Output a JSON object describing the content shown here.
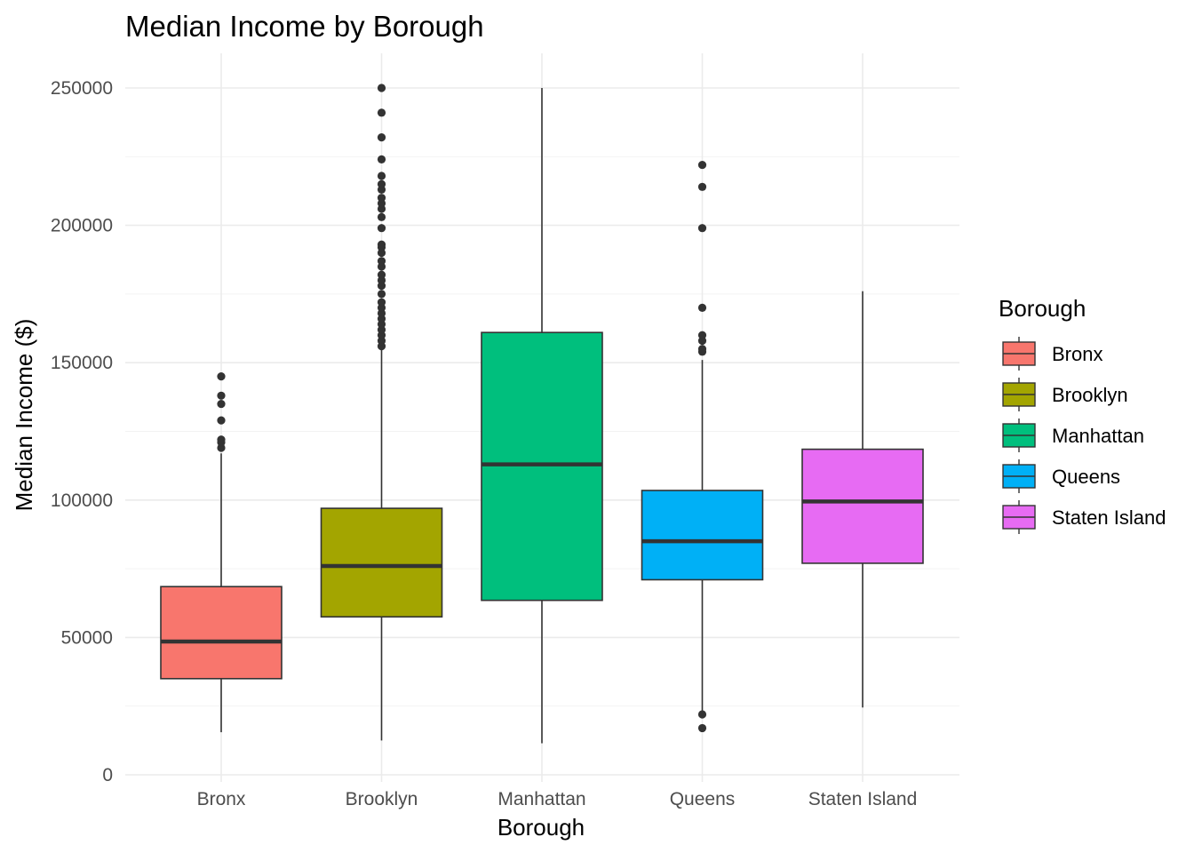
{
  "chart_data": {
    "type": "boxplot",
    "title": "Median Income by Borough",
    "xlabel": "Borough",
    "ylabel": "Median Income ($)",
    "ylim": [
      0,
      250000
    ],
    "yticks": [
      0,
      50000,
      100000,
      150000,
      200000,
      250000
    ],
    "grid": true,
    "legend": {
      "title": "Borough",
      "position": "right"
    },
    "categories": [
      "Bronx",
      "Brooklyn",
      "Manhattan",
      "Queens",
      "Staten Island"
    ],
    "boxes": [
      {
        "category": "Bronx",
        "color": "#F8766D",
        "whisker_low": 15500,
        "q1": 35000,
        "median": 48500,
        "q3": 68500,
        "whisker_high": 117000,
        "outliers": [
          119000,
          121000,
          122000,
          129000,
          135000,
          138000,
          145000
        ]
      },
      {
        "category": "Brooklyn",
        "color": "#A3A500",
        "whisker_low": 12500,
        "q1": 57500,
        "median": 76000,
        "q3": 97000,
        "whisker_high": 155000,
        "outliers": [
          156000,
          158000,
          160000,
          162000,
          164000,
          166000,
          168000,
          170000,
          172000,
          175000,
          178000,
          180000,
          182000,
          185000,
          187000,
          190000,
          192000,
          193000,
          199000,
          203000,
          206000,
          208000,
          210000,
          213000,
          215000,
          218000,
          224000,
          232000,
          241000,
          250000
        ]
      },
      {
        "category": "Manhattan",
        "color": "#00BF7D",
        "whisker_low": 11500,
        "q1": 63500,
        "median": 113000,
        "q3": 161000,
        "whisker_high": 250000,
        "outliers": []
      },
      {
        "category": "Queens",
        "color": "#00B0F6",
        "whisker_low": 23000,
        "q1": 71000,
        "median": 85000,
        "q3": 103500,
        "whisker_high": 151000,
        "outliers": [
          17000,
          22000,
          154000,
          155000,
          158000,
          160000,
          170000,
          199000,
          214000,
          222000
        ]
      },
      {
        "category": "Staten Island",
        "color": "#E76BF3",
        "whisker_low": 24500,
        "q1": 77000,
        "median": 99500,
        "q3": 118500,
        "whisker_high": 176000,
        "outliers": []
      }
    ]
  }
}
